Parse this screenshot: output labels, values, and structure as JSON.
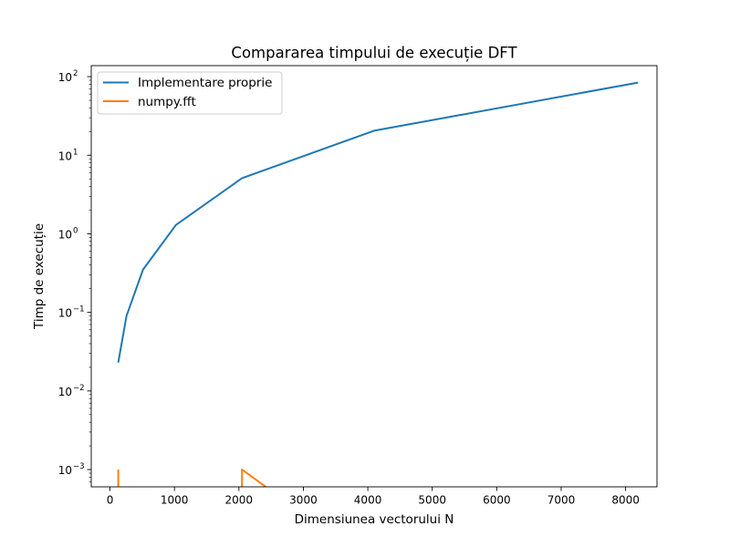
{
  "chart_data": {
    "type": "line",
    "title": "Compararea timpului de execuție DFT",
    "xlabel": "Dimensiunea vectorului N",
    "ylabel": "Timp de execuție",
    "xlim": [
      -291,
      8487
    ],
    "ylim_log10": [
      -3.22,
      2.14
    ],
    "yscale": "log",
    "x_ticks": [
      0,
      1000,
      2000,
      3000,
      4000,
      5000,
      6000,
      7000,
      8000
    ],
    "y_ticks": [
      {
        "exp": -3,
        "label": "10",
        "sup": "−3"
      },
      {
        "exp": -2,
        "label": "10",
        "sup": "−2"
      },
      {
        "exp": -1,
        "label": "10",
        "sup": "−1"
      },
      {
        "exp": 0,
        "label": "10",
        "sup": "0"
      },
      {
        "exp": 1,
        "label": "10",
        "sup": "1"
      },
      {
        "exp": 2,
        "label": "10",
        "sup": "2"
      }
    ],
    "grid": false,
    "legend_position": "top-left",
    "series": [
      {
        "name": "Implementare proprie",
        "color": "#1f77b4",
        "x": [
          128,
          256,
          512,
          1024,
          2048,
          4096,
          8192
        ],
        "y": [
          0.023,
          0.09,
          0.35,
          1.3,
          5.1,
          20.5,
          84
        ]
      },
      {
        "name": "numpy.fft",
        "color": "#ff7f0e",
        "x": [
          128,
          128,
          256,
          512,
          1024,
          2048,
          2048,
          4096,
          8192
        ],
        "y": [
          0.001,
          0,
          0,
          0,
          0,
          0,
          0.001,
          0,
          0
        ]
      }
    ]
  }
}
